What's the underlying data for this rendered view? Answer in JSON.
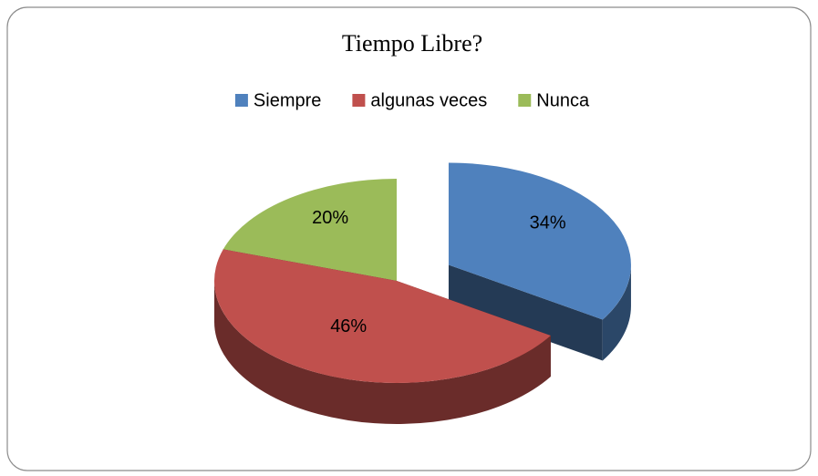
{
  "chart_data": {
    "type": "pie3d",
    "title": "Tiempo Libre?",
    "categories": [
      "Siempre",
      "algunas veces",
      "Nunca"
    ],
    "values": [
      34,
      46,
      20
    ],
    "value_labels": [
      "34%",
      "46%",
      "20%"
    ],
    "colors": [
      "#4f81bd",
      "#c0504d",
      "#9bbb59"
    ],
    "exploded": [
      true,
      false,
      false
    ],
    "legend": "top"
  }
}
